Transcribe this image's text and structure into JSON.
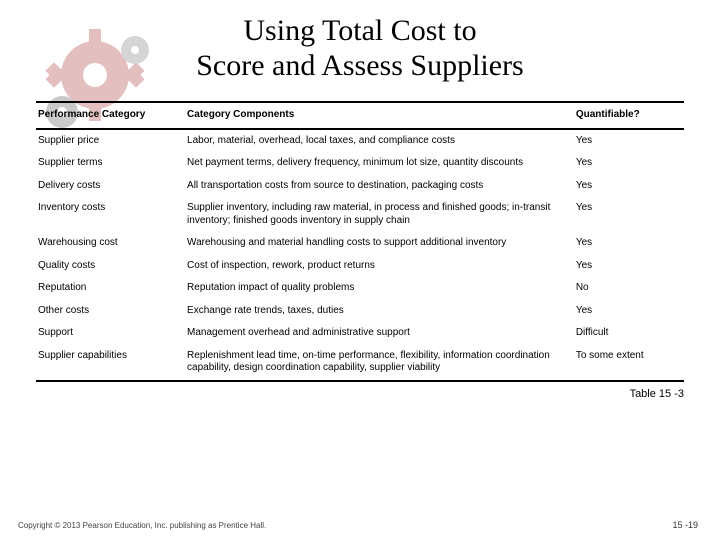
{
  "title_line1": "Using Total Cost to",
  "title_line2": "Score and Assess Suppliers",
  "table": {
    "columns": [
      "Performance Category",
      "Category Components",
      "Quantifiable?"
    ],
    "rows": [
      [
        "Supplier price",
        "Labor, material, overhead, local taxes, and compliance costs",
        "Yes"
      ],
      [
        "Supplier terms",
        "Net payment terms, delivery frequency, minimum lot size, quantity discounts",
        "Yes"
      ],
      [
        "Delivery costs",
        "All transportation costs from source to destination, packaging costs",
        "Yes"
      ],
      [
        "Inventory costs",
        "Supplier inventory, including raw material, in process and finished goods; in-transit inventory; finished goods inventory in supply chain",
        "Yes"
      ],
      [
        "Warehousing cost",
        "Warehousing and material handling costs to support additional inventory",
        "Yes"
      ],
      [
        "Quality costs",
        "Cost of inspection, rework, product returns",
        "Yes"
      ],
      [
        "Reputation",
        "Reputation impact of quality problems",
        "No"
      ],
      [
        "Other costs",
        "Exchange rate trends, taxes, duties",
        "Yes"
      ],
      [
        "Support",
        "Management overhead and administrative support",
        "Difficult"
      ],
      [
        "Supplier capabilities",
        "Replenishment lead time, on-time performance, flexibility, information coordination capability, design coordination capability, supplier viability",
        "To some extent"
      ]
    ]
  },
  "table_label": "Table 15 -3",
  "copyright": "Copyright © 2013 Pearson Education, Inc. publishing as Prentice Hall.",
  "page_number": "15 -19",
  "gear_colors": {
    "big": "#b54a4a",
    "small1": "#6a6a6a",
    "small2": "#8a8a8a"
  }
}
